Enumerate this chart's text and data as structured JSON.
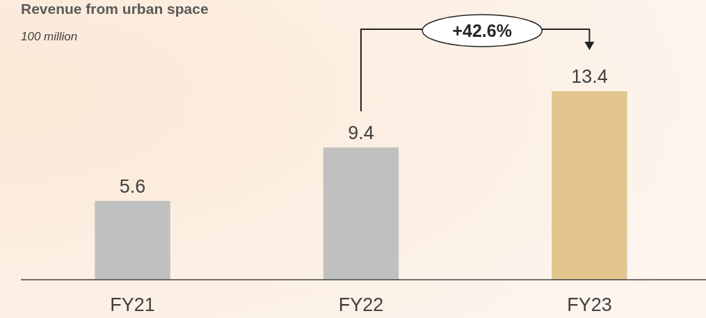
{
  "chart_data": {
    "type": "bar",
    "title": "Revenue from urban space",
    "subtitle": "100 million",
    "categories": [
      "FY21",
      "FY22",
      "FY23"
    ],
    "values": [
      5.6,
      9.4,
      13.4
    ],
    "colors": [
      "#c0c0c0",
      "#c0c0c0",
      "#e2c68e"
    ],
    "data_labels": true,
    "annotations": [
      "+42.6%"
    ]
  }
}
